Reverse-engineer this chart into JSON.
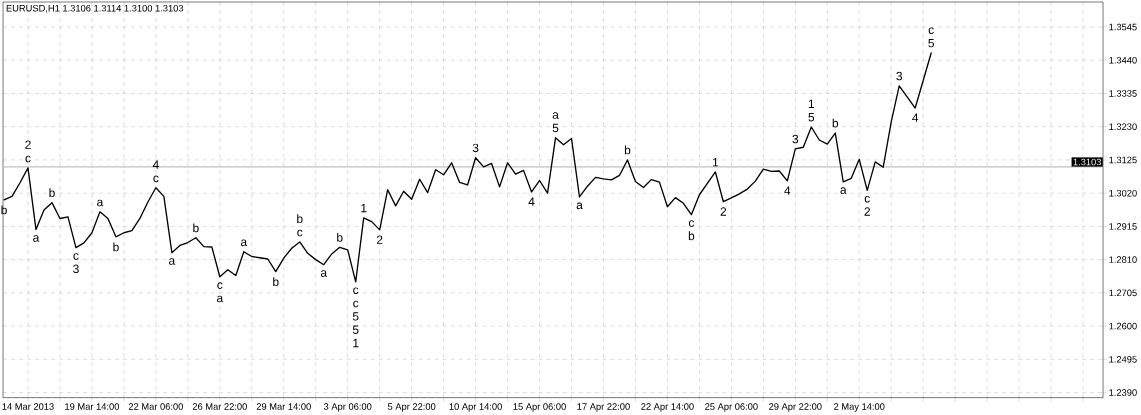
{
  "chart_data": {
    "type": "line",
    "title": "EURUSD,H1  1.3106 1.3114 1.3100 1.3103",
    "categories": [
      null,
      null,
      null,
      "14 Mar 2013",
      null,
      null,
      null,
      null,
      null,
      null,
      null,
      "19 Mar 14:00",
      null,
      null,
      null,
      null,
      null,
      null,
      null,
      "22 Mar 06:00",
      null,
      null,
      null,
      null,
      null,
      null,
      null,
      "26 Mar 22:00",
      null,
      null,
      null,
      null,
      null,
      null,
      null,
      "29 Mar 14:00",
      null,
      null,
      null,
      null,
      null,
      null,
      null,
      "3 Apr 06:00",
      null,
      null,
      null,
      null,
      null,
      null,
      null,
      "5 Apr 22:00",
      null,
      null,
      null,
      null,
      null,
      null,
      null,
      "10 Apr 14:00",
      null,
      null,
      null,
      null,
      null,
      null,
      null,
      "15 Apr 06:00",
      null,
      null,
      null,
      null,
      null,
      null,
      null,
      "17 Apr 22:00",
      null,
      null,
      null,
      null,
      null,
      null,
      null,
      "22 Apr 14:00",
      null,
      null,
      null,
      null,
      null,
      null,
      null,
      "25 Apr 06:00",
      null,
      null,
      null,
      null,
      null,
      null,
      null,
      "29 Apr 22:00",
      null,
      null,
      null,
      null,
      null,
      null,
      null,
      "2 May 14:00",
      null,
      null,
      null,
      null,
      null,
      null,
      null,
      null,
      null,
      null,
      null,
      null,
      null,
      null,
      null,
      null,
      null,
      null,
      null,
      null,
      null,
      null,
      null,
      null,
      null,
      null,
      null,
      null,
      null,
      null
    ],
    "ylim": [
      1.2374,
      1.3624
    ],
    "yticks": [
      {
        "value": 1.239,
        "label": "1.2390"
      },
      {
        "value": 1.2495,
        "label": "1.2495"
      },
      {
        "value": 1.26,
        "label": "1.2600"
      },
      {
        "value": 1.2705,
        "label": "1.2705"
      },
      {
        "value": 1.281,
        "label": "1.2810"
      },
      {
        "value": 1.2915,
        "label": "1.2915"
      },
      {
        "value": 1.302,
        "label": "1.3020"
      },
      {
        "value": 1.3125,
        "label": "1.3125"
      },
      {
        "value": 1.323,
        "label": "1.3230"
      },
      {
        "value": 1.3335,
        "label": "1.3335"
      },
      {
        "value": 1.344,
        "label": "1.3440"
      },
      {
        "value": 1.3545,
        "label": "1.3545"
      }
    ],
    "grid": true,
    "series": [
      {
        "color": "#000000",
        "values": [
          1.2999,
          1.301,
          1.3053,
          1.31,
          1.2905,
          1.2967,
          1.299,
          1.294,
          1.2945,
          1.2848,
          1.2863,
          1.2895,
          1.2961,
          1.294,
          1.2882,
          1.2895,
          1.2902,
          1.294,
          1.2992,
          1.3037,
          1.301,
          1.2832,
          1.2855,
          1.2864,
          1.2879,
          1.2851,
          1.285,
          1.2756,
          1.2778,
          1.276,
          1.2835,
          1.282,
          1.2816,
          1.2812,
          1.2772,
          1.2815,
          1.2846,
          1.2866,
          1.283,
          1.281,
          1.2794,
          1.2828,
          1.2849,
          1.2841,
          1.274,
          1.2942,
          1.293,
          1.2904,
          1.3031,
          1.298,
          1.3026,
          1.3001,
          1.3064,
          1.3022,
          1.3094,
          1.3078,
          1.3116,
          1.3054,
          1.3046,
          1.3132,
          1.3103,
          1.3114,
          1.304,
          1.3116,
          1.308,
          1.3092,
          1.3024,
          1.306,
          1.302,
          1.3195,
          1.3173,
          1.3193,
          1.3008,
          1.3042,
          1.307,
          1.3065,
          1.3062,
          1.3076,
          1.3125,
          1.3057,
          1.3038,
          1.3063,
          1.3055,
          1.2977,
          1.3006,
          1.2988,
          1.2952,
          1.3015,
          1.3051,
          1.3087,
          1.2993,
          1.3005,
          1.3018,
          1.3033,
          1.3058,
          1.3096,
          1.3089,
          1.309,
          1.3059,
          1.316,
          1.3165,
          1.3229,
          1.3188,
          1.3175,
          1.321,
          1.3056,
          1.3067,
          1.3127,
          1.3029,
          1.3119,
          1.3102,
          1.3245,
          1.3359,
          1.3324,
          1.3289,
          1.3376,
          1.3463,
          null,
          null,
          null,
          null,
          null,
          null,
          null,
          null,
          null,
          null,
          null,
          null,
          null,
          null,
          null,
          null,
          null,
          null,
          null,
          null,
          null
        ]
      }
    ],
    "ref_lines": [
      {
        "axis": "y",
        "value": 1.3103,
        "label": "1.3103",
        "color": "#c0c0c0"
      }
    ],
    "annotations": [
      {
        "text": "b",
        "y": 1.2999
      },
      {
        "text": "2 c",
        "y": 1.31
      },
      {
        "text": "a",
        "y": 1.2905
      },
      {
        "text": "b",
        "y": 1.299
      },
      {
        "text": "c 3",
        "y": 1.2848
      },
      {
        "text": "a",
        "y": 1.2961
      },
      {
        "text": "b",
        "y": 1.2882
      },
      {
        "text": "4 c",
        "y": 1.3037
      },
      {
        "text": "a",
        "y": 1.2832
      },
      {
        "text": "b",
        "y": 1.2879
      },
      {
        "text": "c a",
        "y": 1.2756
      },
      {
        "text": "a",
        "y": 1.2835
      },
      {
        "text": "b",
        "y": 1.2772
      },
      {
        "text": "b c",
        "y": 1.2866
      },
      {
        "text": "a",
        "y": 1.2794
      },
      {
        "text": "b",
        "y": 1.2849
      },
      {
        "text": "c c 5 5 1",
        "y": 1.274
      },
      {
        "text": "1",
        "y": 1.2942
      },
      {
        "text": "2",
        "y": 1.2904
      },
      {
        "text": "3",
        "y": 1.3132
      },
      {
        "text": "4",
        "y": 1.3024
      },
      {
        "text": "a 5",
        "y": 1.3195
      },
      {
        "text": "a",
        "y": 1.3008
      },
      {
        "text": "b",
        "y": 1.3125
      },
      {
        "text": "c b",
        "y": 1.2952
      },
      {
        "text": "1",
        "y": 1.3087
      },
      {
        "text": "2",
        "y": 1.2993
      },
      {
        "text": "3",
        "y": 1.316
      },
      {
        "text": "4",
        "y": 1.3059
      },
      {
        "text": "1 5",
        "y": 1.3229
      },
      {
        "text": "b",
        "y": 1.321
      },
      {
        "text": "a",
        "y": 1.3056
      },
      {
        "text": "c 2",
        "y": 1.3029
      },
      {
        "text": "3",
        "y": 1.3359
      },
      {
        "text": "4",
        "y": 1.3289
      },
      {
        "text": "c 5",
        "y": 1.3463
      }
    ]
  }
}
